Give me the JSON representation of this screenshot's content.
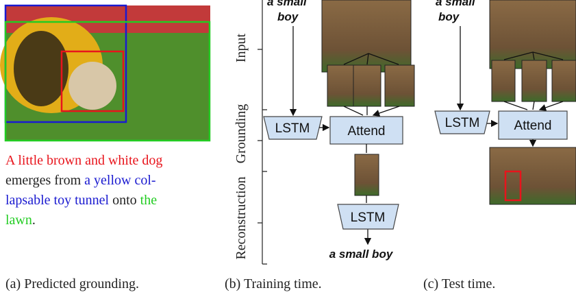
{
  "panel_a": {
    "caption_lines": [
      [
        {
          "text": "A little brown and white dog",
          "color": "#e8141c"
        }
      ],
      [
        {
          "text": "emerges from ",
          "color": "#222222"
        },
        {
          "text": "a yellow col-",
          "color": "#1a1ad0"
        }
      ],
      [
        {
          "text": "lapsable toy tunnel",
          "color": "#1a1ad0"
        },
        {
          "text": " onto ",
          "color": "#222222"
        },
        {
          "text": "the",
          "color": "#22cc22"
        }
      ],
      [
        {
          "text": "lawn",
          "color": "#22cc22"
        },
        {
          "text": ".",
          "color": "#222222"
        }
      ]
    ],
    "label": "(a) Predicted grounding."
  },
  "panel_b": {
    "side_labels": [
      "Input",
      "Grounding",
      "Reconstruction"
    ],
    "query_lines": [
      "a small",
      "boy"
    ],
    "encoder": "LSTM",
    "attend": "Attend",
    "decoder": "LSTM",
    "output": "a small boy",
    "label": "(b) Training time."
  },
  "panel_c": {
    "query_lines": [
      "a small",
      "boy"
    ],
    "encoder": "LSTM",
    "attend": "Attend",
    "label": "(c) Test time."
  }
}
